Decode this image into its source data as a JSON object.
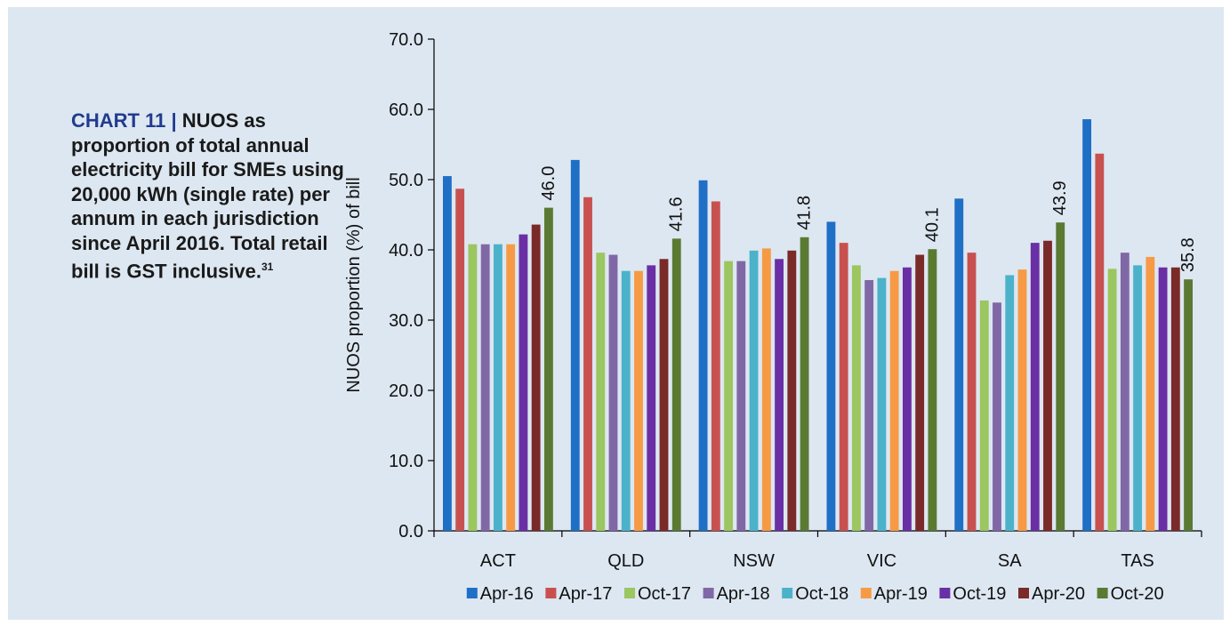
{
  "caption": {
    "lead": "CHART 11 | ",
    "text": "NUOS as proportion of total annual electricity bill for SMEs using 20,000 kWh (single rate) per annum in each jurisdiction since April 2016. Total retail bill is GST inclusive.",
    "footnote": "31"
  },
  "chart_data": {
    "type": "bar",
    "title": "",
    "xlabel": "",
    "ylabel": "NUOS proportion (%) of bill",
    "ylim": [
      0,
      70
    ],
    "yticks": [
      "0.0",
      "10.0",
      "20.0",
      "30.0",
      "40.0",
      "50.0",
      "60.0",
      "70.0"
    ],
    "categories": [
      "ACT",
      "QLD",
      "NSW",
      "VIC",
      "SA",
      "TAS"
    ],
    "legend_position": "bottom",
    "grid": false,
    "series": [
      {
        "name": "Apr-16",
        "color": "#1f6fc6",
        "values": [
          50.5,
          52.8,
          49.9,
          44.0,
          47.3,
          58.6
        ]
      },
      {
        "name": "Apr-17",
        "color": "#c85150",
        "values": [
          48.7,
          47.5,
          46.9,
          41.0,
          39.6,
          53.7
        ]
      },
      {
        "name": "Oct-17",
        "color": "#9bc660",
        "values": [
          40.8,
          39.6,
          38.4,
          37.8,
          32.8,
          37.3
        ]
      },
      {
        "name": "Apr-18",
        "color": "#8068a6",
        "values": [
          40.8,
          39.3,
          38.4,
          35.7,
          32.5,
          39.6
        ]
      },
      {
        "name": "Oct-18",
        "color": "#4bb2ca",
        "values": [
          40.8,
          37.0,
          39.9,
          36.0,
          36.4,
          37.8
        ]
      },
      {
        "name": "Apr-19",
        "color": "#f79a46",
        "values": [
          40.8,
          37.0,
          40.2,
          37.0,
          37.2,
          39.0
        ]
      },
      {
        "name": "Oct-19",
        "color": "#6a2fa5",
        "values": [
          42.2,
          37.8,
          38.7,
          37.5,
          41.0,
          37.5
        ]
      },
      {
        "name": "Apr-20",
        "color": "#7a2a28",
        "values": [
          43.6,
          38.7,
          39.9,
          39.3,
          41.3,
          37.5
        ]
      },
      {
        "name": "Oct-20",
        "color": "#5a7a32",
        "values": [
          46.0,
          41.6,
          41.8,
          40.1,
          43.9,
          35.8
        ]
      }
    ],
    "data_labels": [
      "46.0",
      "41.6",
      "41.8",
      "40.1",
      "43.9",
      "35.8"
    ]
  }
}
